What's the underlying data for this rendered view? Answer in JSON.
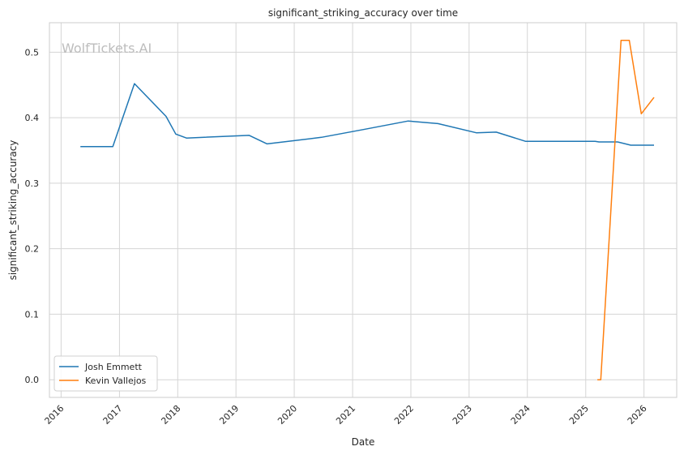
{
  "chart_data": {
    "type": "line",
    "title": "significant_striking_accuracy over time",
    "xlabel": "Date",
    "ylabel": "significant_striking_accuracy",
    "watermark": "WolfTickets.AI",
    "xlim": [
      "2015-10-20",
      "2026-07-25"
    ],
    "ylim": [
      -0.027,
      0.545
    ],
    "x_ticks": [
      "2016",
      "2017",
      "2018",
      "2019",
      "2020",
      "2021",
      "2022",
      "2023",
      "2024",
      "2025",
      "2026"
    ],
    "y_ticks": [
      "0.0",
      "0.1",
      "0.2",
      "0.3",
      "0.4",
      "0.5"
    ],
    "grid": true,
    "legend_position": "lower-left",
    "series": [
      {
        "name": "Josh Emmett",
        "color": "#1f77b4",
        "x": [
          "2016-05-01",
          "2016-11-20",
          "2017-04-05",
          "2017-10-20",
          "2017-12-20",
          "2018-02-25",
          "2019-03-25",
          "2019-07-15",
          "2020-06-20",
          "2021-03-10",
          "2021-12-15",
          "2022-06-20",
          "2023-02-15",
          "2023-06-20",
          "2023-12-20",
          "2024-05-20",
          "2025-03-01",
          "2025-03-25",
          "2025-07-20",
          "2025-10-10",
          "2026-03-05"
        ],
        "values": [
          0.356,
          0.356,
          0.452,
          0.402,
          0.375,
          0.369,
          0.373,
          0.36,
          0.37,
          0.382,
          0.395,
          0.391,
          0.377,
          0.378,
          0.364,
          0.364,
          0.364,
          0.363,
          0.363,
          0.358,
          0.358
        ]
      },
      {
        "name": "Kevin Vallejos",
        "color": "#ff7f0e",
        "x": [
          "2025-03-15",
          "2025-04-05",
          "2025-08-10",
          "2025-10-01",
          "2025-12-15",
          "2026-03-05"
        ],
        "values": [
          0.0,
          0.0,
          0.518,
          0.518,
          0.406,
          0.431
        ]
      }
    ]
  }
}
